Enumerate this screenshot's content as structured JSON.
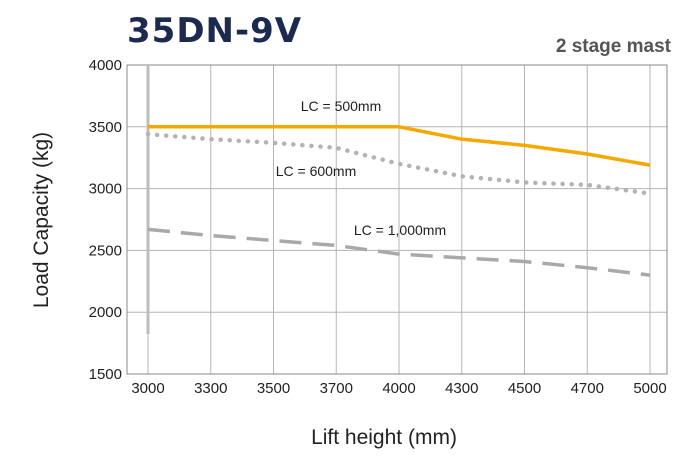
{
  "chart_data": {
    "type": "line",
    "title": "35DN-9V",
    "subtitle": "2 stage mast",
    "xlabel": "Lift height (mm)",
    "ylabel": "Load Capacity (kg)",
    "categories": [
      "3000",
      "3300",
      "3500",
      "3700",
      "4000",
      "4300",
      "4500",
      "4700",
      "5000"
    ],
    "ylim": [
      1500,
      4000
    ],
    "yticks": [
      "1500",
      "2000",
      "2500",
      "3000",
      "3500",
      "4000"
    ],
    "grid": true,
    "series": [
      {
        "name": "LC = 500mm",
        "color": "#f5a800",
        "style": "solid",
        "values": [
          3500,
          3500,
          3500,
          3500,
          3500,
          3400,
          3350,
          3280,
          3190
        ]
      },
      {
        "name": "LC = 600mm",
        "color": "#b3b3b3",
        "style": "dotted",
        "values": [
          3440,
          3400,
          3370,
          3330,
          3200,
          3100,
          3050,
          3030,
          2960
        ]
      },
      {
        "name": "LC = 1,000mm",
        "color": "#a9a9a9",
        "style": "dashed",
        "values": [
          2670,
          2620,
          2580,
          2540,
          2470,
          2440,
          2410,
          2360,
          2300
        ]
      }
    ]
  }
}
